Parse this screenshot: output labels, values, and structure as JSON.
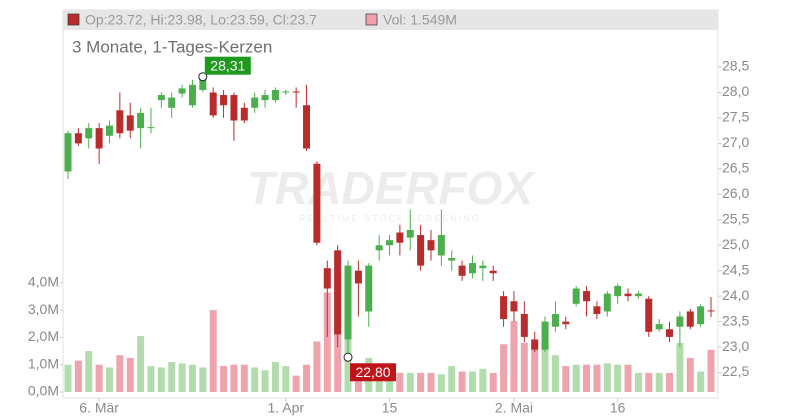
{
  "chart_data": [
    {
      "type": "candlestick",
      "title": "3 Monate, 1-Tages-Kerzen",
      "legend_text": "Op:23.72, Hi:23.98, Lo:23.59, Cl:23.7",
      "watermark": "TRADERFOX",
      "watermark_sub": "REALTIME STOCK SCREENING",
      "up_color": "#4cae4c",
      "down_color": "#b92c2c",
      "categories": [
        null,
        null,
        null,
        "6. Mär",
        null,
        null,
        null,
        null,
        null,
        null,
        null,
        null,
        null,
        null,
        null,
        null,
        null,
        null,
        null,
        null,
        null,
        "1. Apr",
        null,
        null,
        null,
        null,
        null,
        null,
        null,
        null,
        null,
        "15",
        null,
        null,
        null,
        null,
        null,
        null,
        null,
        null,
        null,
        null,
        null,
        "2. Mai",
        null,
        null,
        null,
        null,
        null,
        null,
        null,
        null,
        null,
        "16",
        null,
        null,
        null,
        null,
        null,
        null,
        null,
        null,
        null
      ],
      "open": [
        26.45,
        27.2,
        27.1,
        27.3,
        27.15,
        27.65,
        27.55,
        27.3,
        27.3,
        27.85,
        27.7,
        27.98,
        27.75,
        28.05,
        28.0,
        27.95,
        27.95,
        27.7,
        27.7,
        27.85,
        27.85,
        28.0,
        28.02,
        27.75,
        26.6,
        24.55,
        24.9,
        23.15,
        24.5,
        23.7,
        24.9,
        25.0,
        25.25,
        25.15,
        25.2,
        25.1,
        24.8,
        24.7,
        24.6,
        24.45,
        24.55,
        24.5,
        24.0,
        23.9,
        23.65,
        23.15,
        22.95,
        23.4,
        23.5,
        23.85,
        24.1,
        23.8,
        23.7,
        24.0,
        24.05,
        24.0,
        23.95,
        23.35,
        23.35,
        23.4,
        23.7,
        23.45,
        23.72
      ],
      "high": [
        27.25,
        27.3,
        27.4,
        27.4,
        27.45,
        28.0,
        27.8,
        27.7,
        27.7,
        28.0,
        28.0,
        28.15,
        28.25,
        28.31,
        28.1,
        28.05,
        28.0,
        27.8,
        28.0,
        28.05,
        28.1,
        28.05,
        28.1,
        28.15,
        26.65,
        24.7,
        25.0,
        24.7,
        24.7,
        24.65,
        25.2,
        25.2,
        25.4,
        25.7,
        25.4,
        25.3,
        25.7,
        24.9,
        24.7,
        24.8,
        24.7,
        24.6,
        24.1,
        24.1,
        23.9,
        23.3,
        23.6,
        23.9,
        23.6,
        24.2,
        24.2,
        23.9,
        24.1,
        24.25,
        24.15,
        24.1,
        24.0,
        23.55,
        23.5,
        23.7,
        23.75,
        23.85,
        23.98
      ],
      "low": [
        26.3,
        26.95,
        26.9,
        26.6,
        27.0,
        27.1,
        27.1,
        26.9,
        27.2,
        27.7,
        27.5,
        27.9,
        27.7,
        28.0,
        27.5,
        27.5,
        27.05,
        27.4,
        27.6,
        27.7,
        27.8,
        27.95,
        27.7,
        26.85,
        25.0,
        23.2,
        23.0,
        22.8,
        23.6,
        23.4,
        24.7,
        24.8,
        24.8,
        24.9,
        24.5,
        24.7,
        24.6,
        24.5,
        24.3,
        24.35,
        24.3,
        24.3,
        23.4,
        23.5,
        23.1,
        22.9,
        22.9,
        23.3,
        23.35,
        23.8,
        23.6,
        23.55,
        23.6,
        23.85,
        23.9,
        23.95,
        23.2,
        23.3,
        23.1,
        23.0,
        23.35,
        23.4,
        23.59
      ],
      "close": [
        27.2,
        27.0,
        27.3,
        26.9,
        27.35,
        27.2,
        27.25,
        27.6,
        27.32,
        27.95,
        27.9,
        28.08,
        28.15,
        28.3,
        27.55,
        27.75,
        27.45,
        27.45,
        27.9,
        27.95,
        28.05,
        28.02,
        28.0,
        26.9,
        25.05,
        24.15,
        23.25,
        24.6,
        24.25,
        24.6,
        25.0,
        25.1,
        25.05,
        25.3,
        24.6,
        24.9,
        25.2,
        24.75,
        24.4,
        24.65,
        24.6,
        24.45,
        23.55,
        23.7,
        23.2,
        22.95,
        23.5,
        23.65,
        23.45,
        24.15,
        23.9,
        23.65,
        24.05,
        24.2,
        24.0,
        24.05,
        23.3,
        23.45,
        23.2,
        23.6,
        23.4,
        23.8,
        23.7
      ],
      "ylim": [
        22.0,
        29.62
      ],
      "yticks": [
        {
          "value": 22.5,
          "label": "22,5"
        },
        {
          "value": 23.0,
          "label": "23,0"
        },
        {
          "value": 23.5,
          "label": "23,5"
        },
        {
          "value": 24.0,
          "label": "24,0"
        },
        {
          "value": 24.5,
          "label": "24,5"
        },
        {
          "value": 25.0,
          "label": "25,0"
        },
        {
          "value": 25.5,
          "label": "25,5"
        },
        {
          "value": 26.0,
          "label": "26,0"
        },
        {
          "value": 26.5,
          "label": "26,5"
        },
        {
          "value": 27.0,
          "label": "27,0"
        },
        {
          "value": 27.5,
          "label": "27,5"
        },
        {
          "value": 28.0,
          "label": "28,0"
        },
        {
          "value": 28.5,
          "label": "28,5"
        }
      ],
      "annotations": [
        {
          "value": 28.31,
          "label": "28,31",
          "color": "#1f9a1f"
        },
        {
          "value": 22.8,
          "label": "22,80",
          "color": "#c0141b"
        }
      ]
    },
    {
      "type": "bar",
      "legend_text": "Vol: 1.549M",
      "up_color": "#b3dcae",
      "down_color": "#eea3ad",
      "values": [
        1.0,
        1.15,
        1.5,
        1.0,
        0.9,
        1.35,
        1.25,
        2.05,
        0.95,
        0.9,
        1.1,
        1.05,
        1.0,
        0.9,
        3.0,
        0.95,
        1.0,
        1.0,
        0.9,
        0.8,
        1.1,
        0.95,
        0.6,
        1.0,
        1.85,
        3.65,
        4.45,
        2.4,
        1.0,
        1.25,
        0.7,
        0.7,
        0.7,
        0.7,
        0.7,
        0.7,
        0.65,
        0.95,
        0.75,
        0.75,
        0.85,
        0.7,
        1.75,
        2.6,
        1.8,
        1.8,
        1.8,
        1.35,
        0.95,
        1.0,
        1.0,
        1.0,
        1.05,
        1.0,
        1.0,
        0.7,
        0.7,
        0.7,
        0.7,
        1.8,
        1.25,
        0.75,
        1.549
      ],
      "ylim": [
        0,
        14
      ],
      "yticks": [
        {
          "value": 0,
          "label": "0,0M"
        },
        {
          "value": 1,
          "label": "1,0M"
        },
        {
          "value": 2,
          "label": "2,0M"
        },
        {
          "value": 3,
          "label": "3,0M"
        },
        {
          "value": 4,
          "label": "4,0M"
        }
      ]
    }
  ]
}
